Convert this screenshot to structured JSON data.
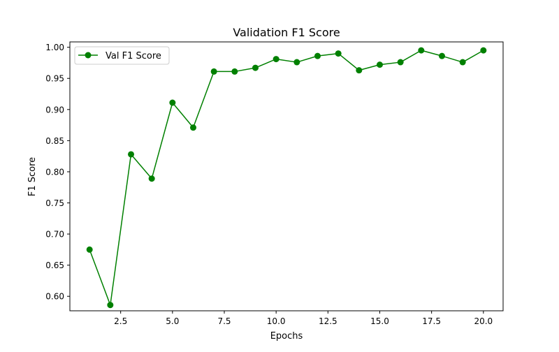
{
  "chart_data": {
    "type": "line",
    "title": "Validation F1 Score",
    "xlabel": "Epochs",
    "ylabel": "F1 Score",
    "xlim": [
      0.05,
      20.95
    ],
    "ylim": [
      0.5767,
      1.0086
    ],
    "x_ticks": [
      2.5,
      5.0,
      7.5,
      10.0,
      12.5,
      15.0,
      17.5,
      20.0
    ],
    "x_tick_labels": [
      "2.5",
      "5.0",
      "7.5",
      "10.0",
      "12.5",
      "15.0",
      "17.5",
      "20.0"
    ],
    "y_ticks": [
      0.6,
      0.65,
      0.7,
      0.75,
      0.8,
      0.85,
      0.9,
      0.95,
      1.0
    ],
    "y_tick_labels": [
      "0.60",
      "0.65",
      "0.70",
      "0.75",
      "0.80",
      "0.85",
      "0.90",
      "0.95",
      "1.00"
    ],
    "grid": false,
    "legend_position": "top-left",
    "series": [
      {
        "name": "Val F1 Score",
        "color": "#008000",
        "marker": "circle",
        "x": [
          1,
          2,
          3,
          4,
          5,
          6,
          7,
          8,
          9,
          10,
          11,
          12,
          13,
          14,
          15,
          16,
          17,
          18,
          19,
          20
        ],
        "values": [
          0.675,
          0.586,
          0.828,
          0.789,
          0.911,
          0.871,
          0.961,
          0.961,
          0.967,
          0.981,
          0.976,
          0.986,
          0.99,
          0.963,
          0.972,
          0.976,
          0.995,
          0.986,
          0.976,
          0.995
        ]
      }
    ]
  }
}
